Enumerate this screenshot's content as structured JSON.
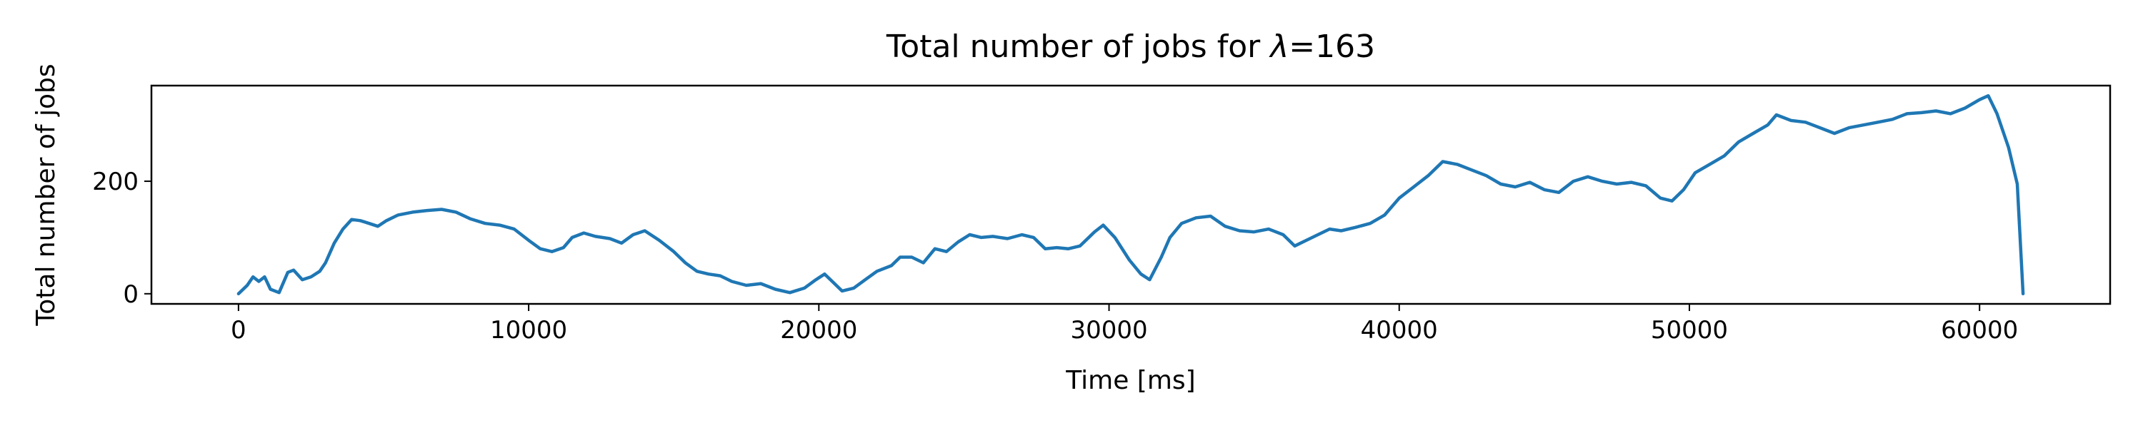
{
  "chart_data": {
    "type": "line",
    "title_prefix": "Total number of jobs for ",
    "title_symbol": "λ",
    "title_suffix": "=163",
    "xlabel": "Time [ms]",
    "ylabel": "Total number of jobs",
    "xlim": [
      -3000,
      64500
    ],
    "ylim": [
      -18,
      370
    ],
    "xticks": [
      0,
      10000,
      20000,
      30000,
      40000,
      50000,
      60000
    ],
    "yticks": [
      0,
      200
    ],
    "grid": false,
    "legend": "none",
    "series": [
      {
        "color": "#1f77b4",
        "points": [
          [
            0,
            0
          ],
          [
            300,
            15
          ],
          [
            500,
            30
          ],
          [
            700,
            22
          ],
          [
            900,
            30
          ],
          [
            1100,
            8
          ],
          [
            1400,
            2
          ],
          [
            1700,
            38
          ],
          [
            1900,
            42
          ],
          [
            2200,
            25
          ],
          [
            2500,
            30
          ],
          [
            2800,
            40
          ],
          [
            3000,
            55
          ],
          [
            3300,
            90
          ],
          [
            3600,
            115
          ],
          [
            3900,
            132
          ],
          [
            4200,
            130
          ],
          [
            4500,
            125
          ],
          [
            4800,
            120
          ],
          [
            5100,
            130
          ],
          [
            5500,
            140
          ],
          [
            6000,
            145
          ],
          [
            6500,
            148
          ],
          [
            7000,
            150
          ],
          [
            7500,
            145
          ],
          [
            8000,
            133
          ],
          [
            8500,
            125
          ],
          [
            9000,
            122
          ],
          [
            9500,
            115
          ],
          [
            10000,
            95
          ],
          [
            10400,
            80
          ],
          [
            10800,
            75
          ],
          [
            11200,
            82
          ],
          [
            11500,
            100
          ],
          [
            11900,
            108
          ],
          [
            12300,
            102
          ],
          [
            12800,
            98
          ],
          [
            13200,
            90
          ],
          [
            13600,
            105
          ],
          [
            14000,
            112
          ],
          [
            14500,
            95
          ],
          [
            15000,
            75
          ],
          [
            15400,
            55
          ],
          [
            15800,
            40
          ],
          [
            16200,
            35
          ],
          [
            16600,
            32
          ],
          [
            17000,
            22
          ],
          [
            17500,
            15
          ],
          [
            18000,
            18
          ],
          [
            18500,
            8
          ],
          [
            19000,
            2
          ],
          [
            19500,
            10
          ],
          [
            19900,
            25
          ],
          [
            20200,
            35
          ],
          [
            20500,
            20
          ],
          [
            20800,
            5
          ],
          [
            21200,
            10
          ],
          [
            21600,
            25
          ],
          [
            22000,
            40
          ],
          [
            22500,
            50
          ],
          [
            22800,
            65
          ],
          [
            23200,
            65
          ],
          [
            23600,
            55
          ],
          [
            24000,
            80
          ],
          [
            24400,
            75
          ],
          [
            24800,
            92
          ],
          [
            25200,
            105
          ],
          [
            25600,
            100
          ],
          [
            26000,
            102
          ],
          [
            26500,
            98
          ],
          [
            27000,
            105
          ],
          [
            27400,
            100
          ],
          [
            27800,
            80
          ],
          [
            28200,
            82
          ],
          [
            28600,
            80
          ],
          [
            29000,
            85
          ],
          [
            29500,
            110
          ],
          [
            29800,
            122
          ],
          [
            30200,
            100
          ],
          [
            30700,
            60
          ],
          [
            31100,
            35
          ],
          [
            31400,
            25
          ],
          [
            31800,
            65
          ],
          [
            32100,
            100
          ],
          [
            32500,
            125
          ],
          [
            33000,
            135
          ],
          [
            33500,
            138
          ],
          [
            34000,
            120
          ],
          [
            34500,
            112
          ],
          [
            35000,
            110
          ],
          [
            35500,
            115
          ],
          [
            36000,
            105
          ],
          [
            36400,
            85
          ],
          [
            36800,
            95
          ],
          [
            37200,
            105
          ],
          [
            37600,
            115
          ],
          [
            38000,
            112
          ],
          [
            38500,
            118
          ],
          [
            39000,
            125
          ],
          [
            39500,
            140
          ],
          [
            40000,
            170
          ],
          [
            40500,
            190
          ],
          [
            41000,
            210
          ],
          [
            41500,
            235
          ],
          [
            42000,
            230
          ],
          [
            42500,
            220
          ],
          [
            43000,
            210
          ],
          [
            43500,
            195
          ],
          [
            44000,
            190
          ],
          [
            44500,
            198
          ],
          [
            45000,
            185
          ],
          [
            45500,
            180
          ],
          [
            46000,
            200
          ],
          [
            46500,
            208
          ],
          [
            47000,
            200
          ],
          [
            47500,
            195
          ],
          [
            48000,
            198
          ],
          [
            48500,
            192
          ],
          [
            49000,
            170
          ],
          [
            49400,
            165
          ],
          [
            49800,
            185
          ],
          [
            50200,
            215
          ],
          [
            50700,
            230
          ],
          [
            51200,
            245
          ],
          [
            51700,
            270
          ],
          [
            52200,
            285
          ],
          [
            52700,
            300
          ],
          [
            53000,
            318
          ],
          [
            53500,
            308
          ],
          [
            54000,
            305
          ],
          [
            54500,
            295
          ],
          [
            55000,
            285
          ],
          [
            55500,
            295
          ],
          [
            56000,
            300
          ],
          [
            56500,
            305
          ],
          [
            57000,
            310
          ],
          [
            57500,
            320
          ],
          [
            58000,
            322
          ],
          [
            58500,
            325
          ],
          [
            59000,
            320
          ],
          [
            59500,
            330
          ],
          [
            60000,
            345
          ],
          [
            60300,
            352
          ],
          [
            60600,
            320
          ],
          [
            61000,
            260
          ],
          [
            61300,
            195
          ],
          [
            61500,
            0
          ]
        ]
      }
    ]
  }
}
